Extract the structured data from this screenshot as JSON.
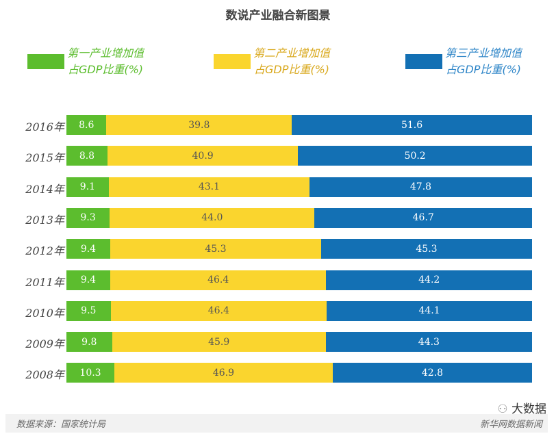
{
  "chart_data": {
    "type": "bar",
    "stacked": true,
    "orientation": "horizontal",
    "title": "数说产业融合新图景",
    "categories": [
      "2016年",
      "2015年",
      "2014年",
      "2013年",
      "2012年",
      "2011年",
      "2010年",
      "2009年",
      "2008年"
    ],
    "series": [
      {
        "name": "第一产业增加值占GDP比重(%)",
        "legend_line1": "第一产业增加值",
        "legend_line2": "占GDP比重(%)",
        "color": "#5cbd2e",
        "text_color": "#5cbd2e",
        "values": [
          8.6,
          8.8,
          9.1,
          9.3,
          9.4,
          9.4,
          9.5,
          9.8,
          10.3
        ]
      },
      {
        "name": "第二产业增加值占GDP比重(%)",
        "legend_line1": "第二产业增加值",
        "legend_line2": "占GDP比重(%)",
        "color": "#fad52e",
        "text_color": "#d9a81c",
        "values": [
          39.8,
          40.9,
          43.1,
          44.0,
          45.3,
          46.4,
          46.4,
          45.9,
          46.9
        ]
      },
      {
        "name": "第三产业增加值占GDP比重(%)",
        "legend_line1": "第三产业增加值",
        "legend_line2": "占GDP比重(%)",
        "color": "#1370b4",
        "text_color": "#2f86c8",
        "values": [
          51.6,
          50.2,
          47.8,
          46.7,
          45.3,
          44.2,
          44.1,
          44.3,
          42.8
        ]
      }
    ],
    "legend_placement": "top"
  },
  "footer": {
    "source": "数据来源：国家统计局",
    "brand": "新华网数据新闻",
    "watermark": "大数据"
  }
}
